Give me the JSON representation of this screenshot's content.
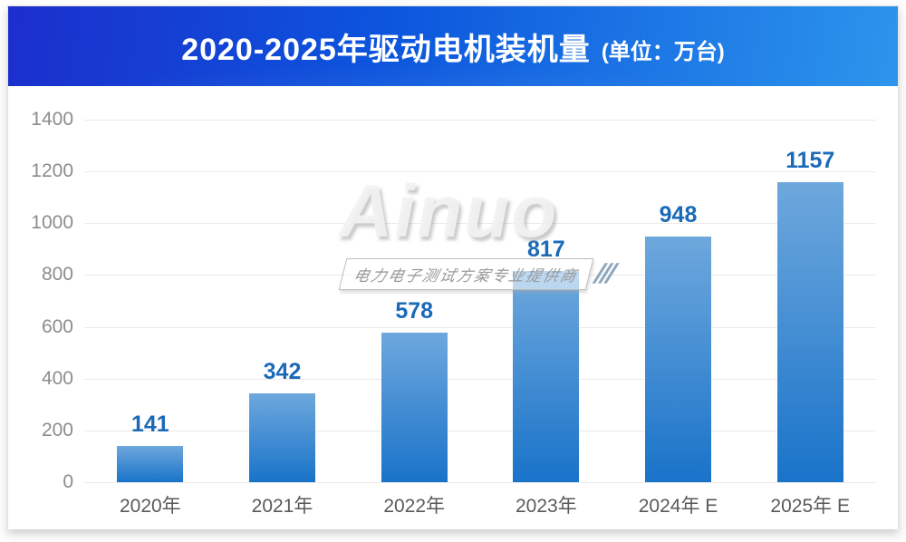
{
  "header": {
    "title": "2020-2025年驱动电机装机量",
    "unit_label": "(单位：万台)"
  },
  "watermark": {
    "brand": "Ainuo",
    "tagline": "电力电子测试方案专业提供商",
    "slashes": "///"
  },
  "chart_data": {
    "type": "bar",
    "title": "2020-2025年驱动电机装机量",
    "unit": "万台",
    "categories": [
      "2020年",
      "2021年",
      "2022年",
      "2023年",
      "2024年 E",
      "2025年 E"
    ],
    "values": [
      141,
      342,
      578,
      817,
      948,
      1157
    ],
    "xlabel": "",
    "ylabel": "",
    "ylim": [
      0,
      1400
    ],
    "yticks": [
      0,
      200,
      400,
      600,
      800,
      1000,
      1200,
      1400
    ],
    "grid": "horizontal",
    "legend": "none",
    "bar_gradient_top": "#6ea8dd",
    "bar_gradient_bottom": "#1973c9",
    "value_label_color": "#1a6ab8",
    "ytick_color": "#8c8c8c",
    "xtick_color": "#5a5a5a",
    "banner_gradient": [
      "#1c2ecc",
      "#0c55dd",
      "#2c95ec"
    ]
  }
}
